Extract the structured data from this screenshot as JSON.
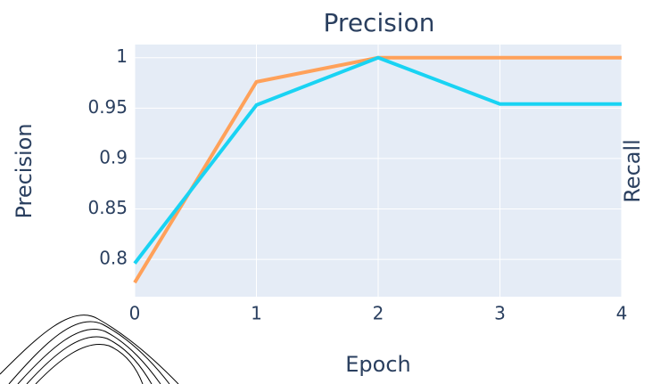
{
  "chart_data": {
    "type": "line",
    "title": "Precision",
    "x_label": "Epoch",
    "y_label": "Precision",
    "y2_label": "Recall",
    "x": [
      0,
      1,
      2,
      3,
      4
    ],
    "series": [
      {
        "color": "#ffa15a",
        "values": [
          0.777,
          0.976,
          1,
          1,
          1
        ]
      },
      {
        "color": "#19d3f3",
        "values": [
          0.796,
          0.953,
          1,
          0.954,
          0.954
        ]
      }
    ],
    "xlim": [
      0,
      4
    ],
    "xticks": [
      0,
      1,
      2,
      3,
      4
    ],
    "ylim": [
      0.763,
      1.013
    ],
    "yticks": [
      0.8,
      0.85,
      0.9,
      0.95,
      1
    ],
    "grid": true,
    "background": "#e5ecf6"
  }
}
